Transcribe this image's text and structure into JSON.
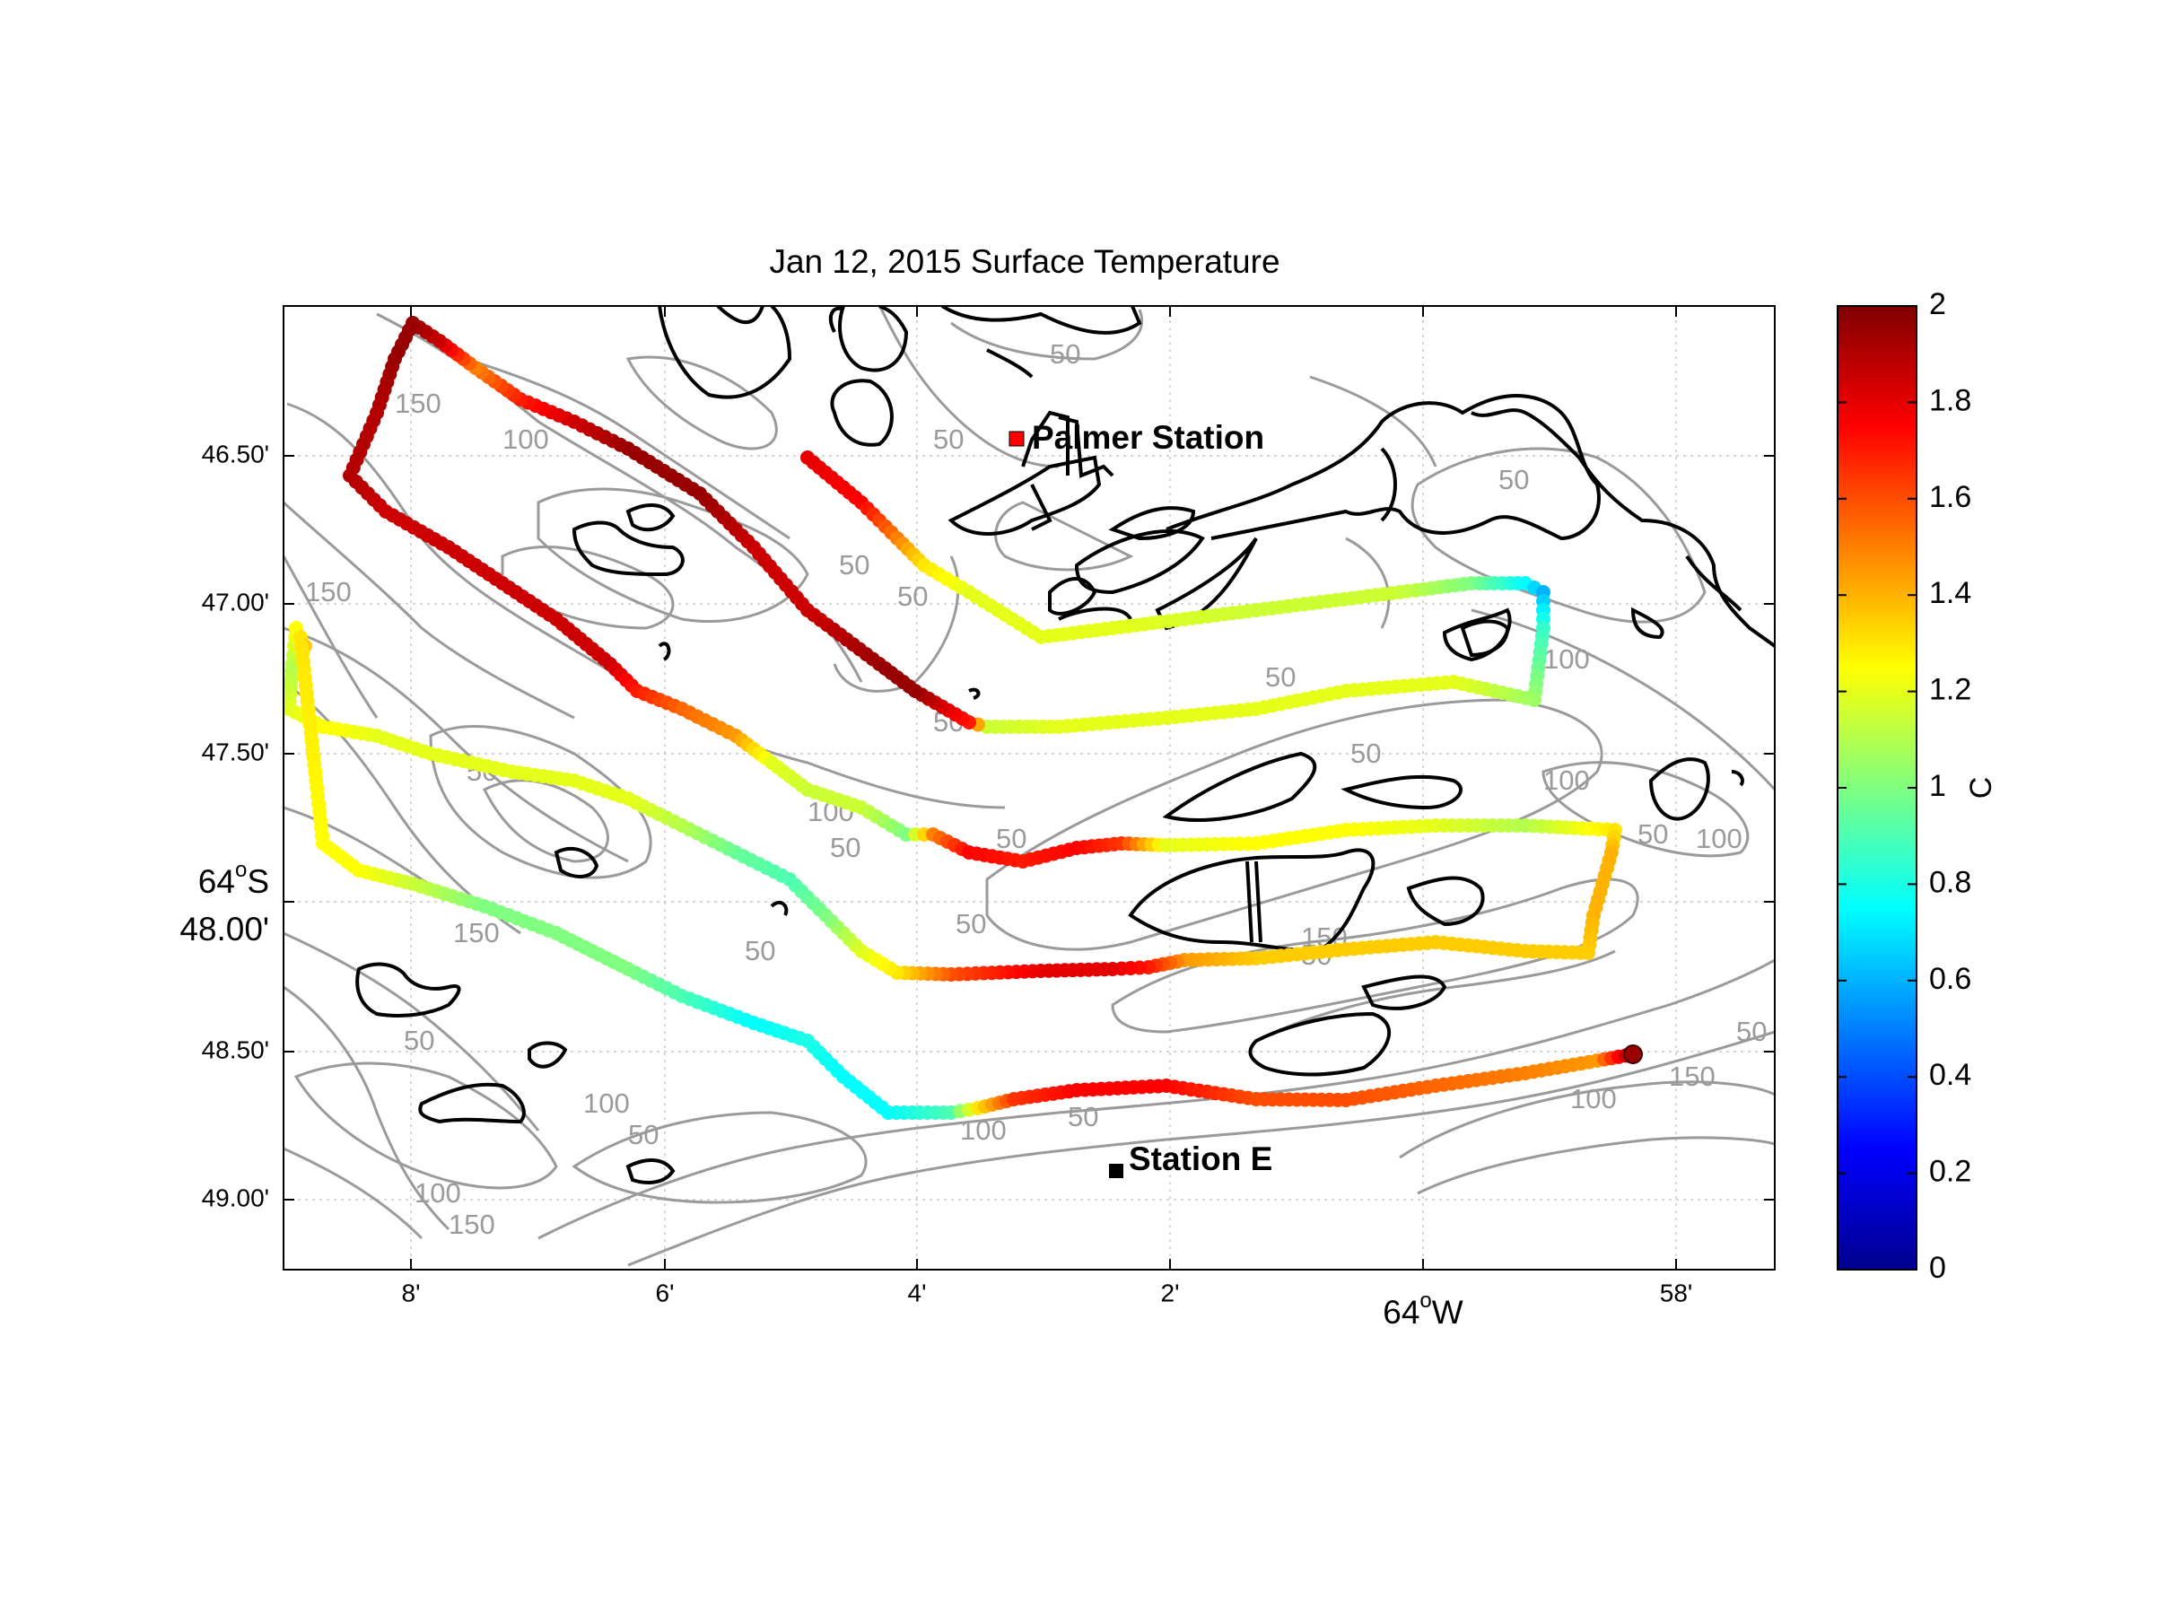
{
  "map": {
    "title": "Jan 12, 2015 Surface Temperature",
    "lon_ticks": [
      "8'",
      "6'",
      "4'",
      "2'",
      "58'"
    ],
    "lon_degree_label": "64",
    "lon_degree_suffix": "W",
    "degree_symbol": "o",
    "lat_ticks": [
      "46.50'",
      "47.00'",
      "47.50'",
      "48.50'",
      "49.00'"
    ],
    "lat_degree_label": "64",
    "lat_degree_suffix": "S",
    "lat_center_label": "48.00'",
    "stations": [
      {
        "name": "Palmer Station",
        "label": "Palmer Station"
      },
      {
        "name": "Station E",
        "label": "Station E"
      }
    ],
    "contour_labels": [
      "50",
      "100",
      "150"
    ],
    "colors": {
      "coastline": "#000000",
      "bathymetry": "#9a9a9a",
      "grid": "#bdbdbd"
    }
  },
  "colorbar": {
    "label": "C",
    "ticks": [
      "0",
      "0.2",
      "0.4",
      "0.6",
      "0.8",
      "1",
      "1.2",
      "1.4",
      "1.6",
      "1.8",
      "2"
    ],
    "range": [
      0,
      2
    ],
    "colormap": "jet"
  },
  "track": {
    "description_units": "C",
    "segments": [
      {
        "from": "start",
        "temperature": 1.8
      },
      {
        "leg": 1,
        "temperature_range": [
          1.7,
          2.0
        ]
      },
      {
        "leg": 2,
        "temperature_range": [
          1.1,
          1.3
        ]
      },
      {
        "leg": 3,
        "temperature_range": [
          0.6,
          1.7
        ]
      },
      {
        "leg": 4,
        "temperature_range": [
          0.75,
          1.95
        ]
      }
    ]
  }
}
